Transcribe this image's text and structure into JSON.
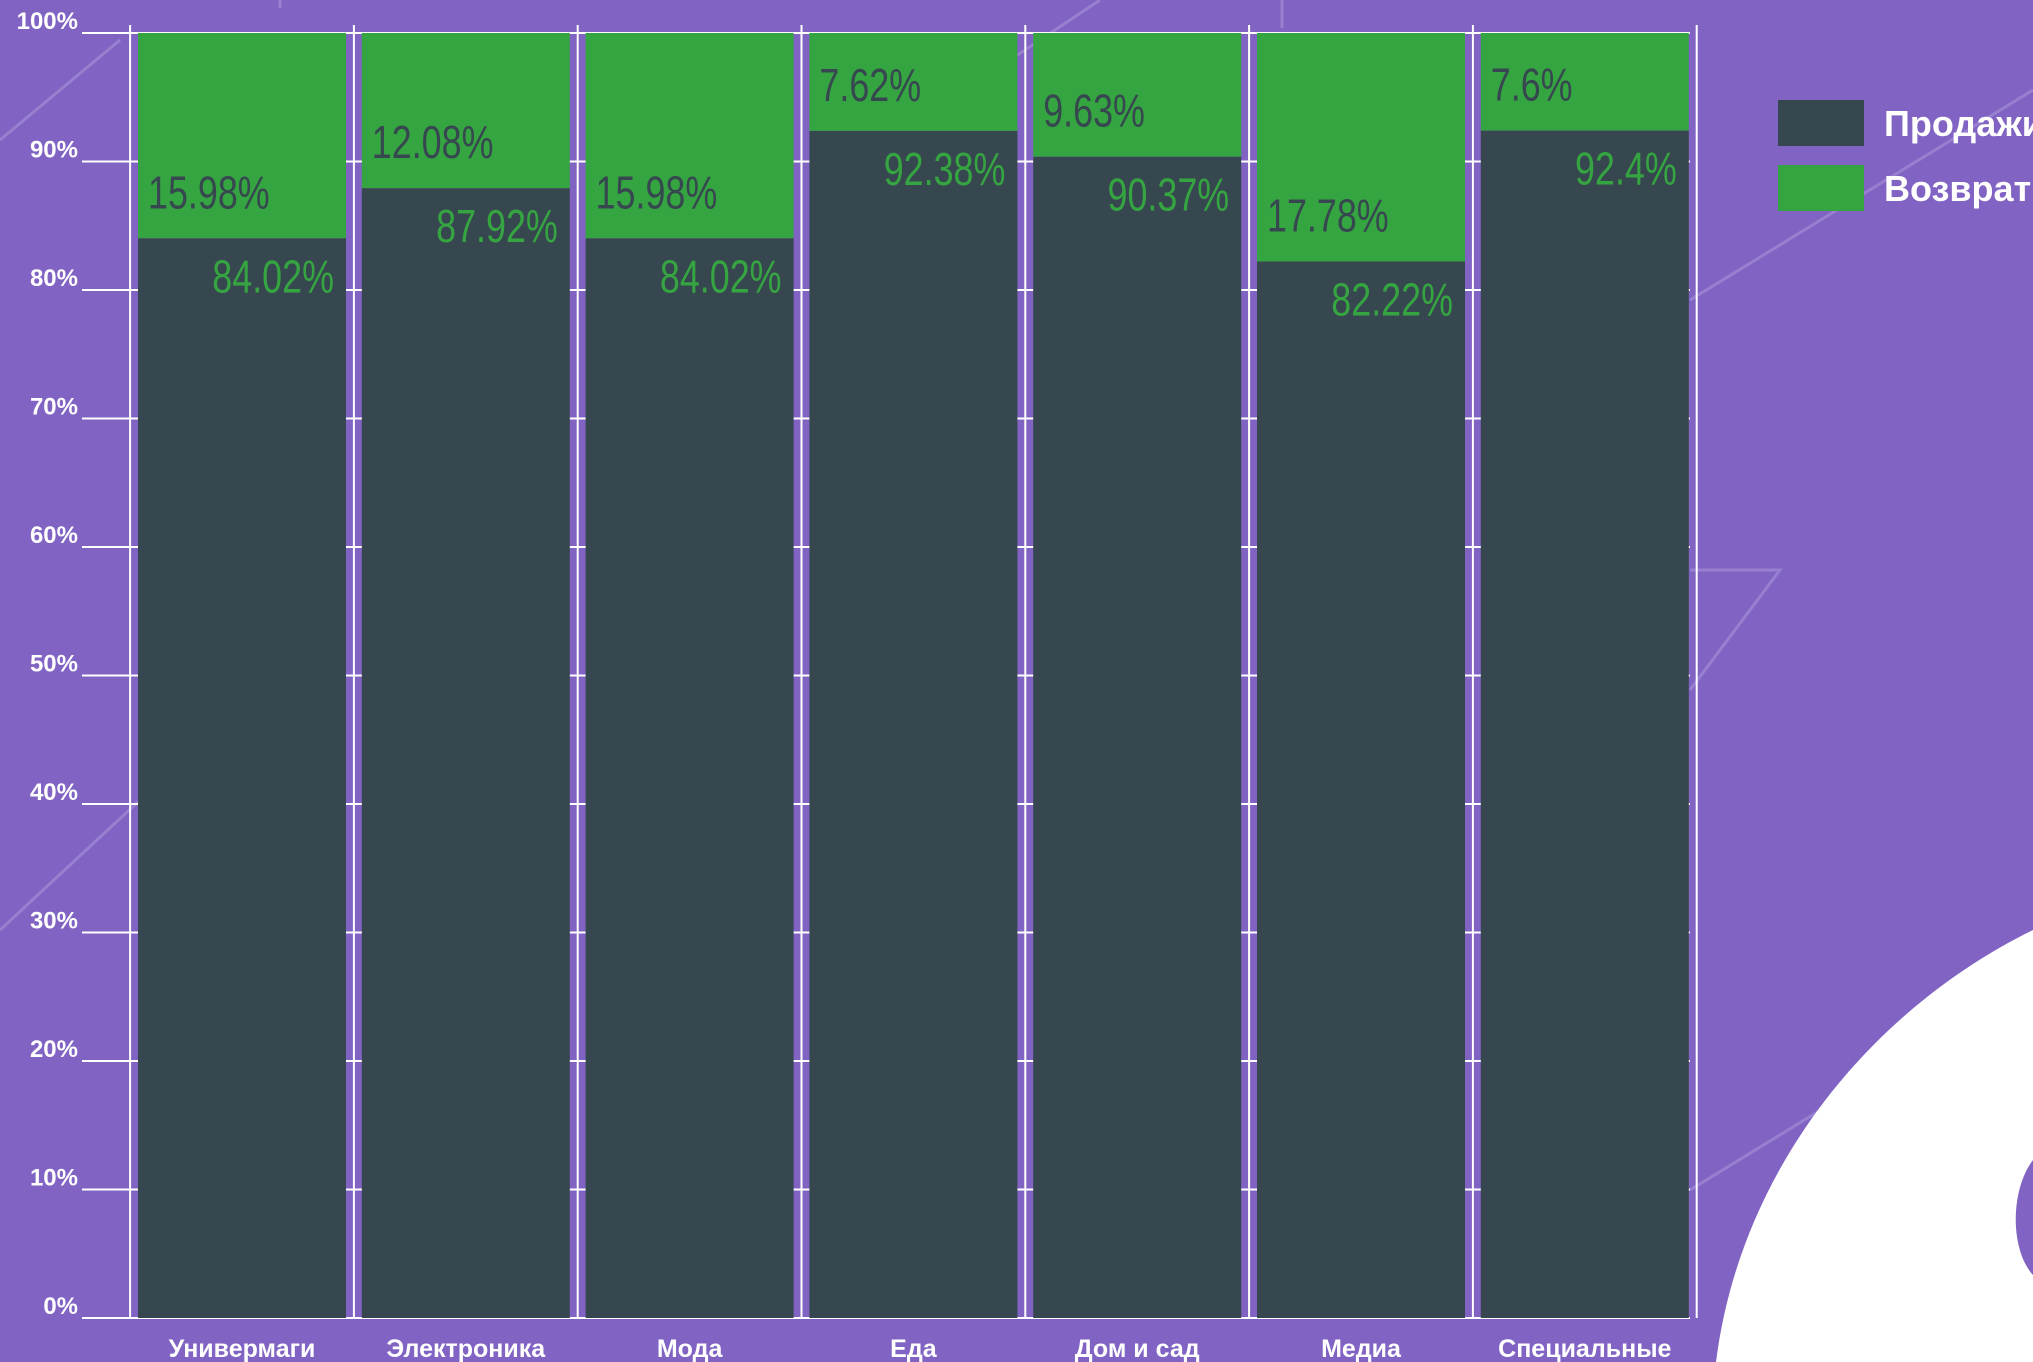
{
  "chart_data": {
    "type": "bar",
    "stacked": true,
    "percent": true,
    "categories": [
      "Универмаги",
      "Электроника",
      "Мода",
      "Еда",
      "Дом и сад",
      "Медиа",
      "Специальные"
    ],
    "series": [
      {
        "name": "Продажи",
        "color": "#37474f",
        "label_color": "#35a541",
        "values": [
          84.02,
          87.92,
          84.02,
          92.38,
          90.37,
          82.22,
          92.4
        ],
        "labels": [
          "84.02%",
          "87.92%",
          "84.02%",
          "92.38%",
          "90.37%",
          "82.22%",
          "92.4%"
        ]
      },
      {
        "name": "Возврат",
        "color": "#35a541",
        "label_color": "#37474f",
        "values": [
          15.98,
          12.08,
          15.98,
          7.62,
          9.63,
          17.78,
          7.6
        ],
        "labels": [
          "15.98%",
          "12.08%",
          "15.98%",
          "7.62%",
          "9.63%",
          "17.78%",
          "7.6%"
        ]
      }
    ],
    "ylim": [
      0,
      100
    ],
    "y_ticks": [
      "0%",
      "10%",
      "20%",
      "30%",
      "40%",
      "50%",
      "60%",
      "70%",
      "80%",
      "90%",
      "100%"
    ],
    "legend_position": "top-right",
    "grid": true,
    "background_color": "#8063c3",
    "grid_color": "#ffffff"
  }
}
